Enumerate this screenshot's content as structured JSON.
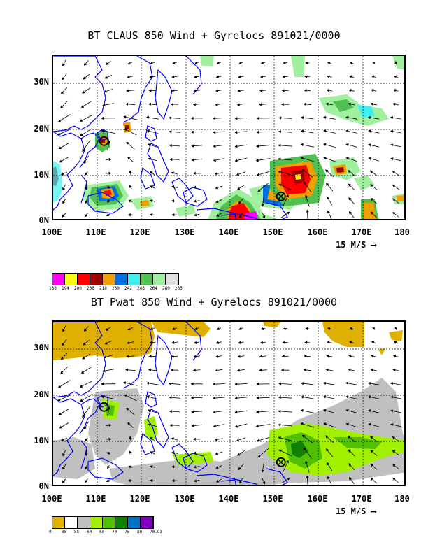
{
  "panels": [
    {
      "title": "BT CLAUS 850 Wind + Gyrelocs 891021/0000",
      "field": "brightness temperature",
      "legend": {
        "colors": [
          "#ff00ff",
          "#ffff00",
          "#ff0000",
          "#a00000",
          "#f0a000",
          "#0070e0",
          "#40f0f0",
          "#50c050",
          "#a0f0a0",
          "#e0e0e0"
        ],
        "labels": [
          "188",
          "194",
          "200",
          "206",
          "218",
          "230",
          "242",
          "248",
          "264",
          "280",
          "285"
        ]
      }
    },
    {
      "title": "BT Pwat 850 Wind + Gyrelocs 891021/0000",
      "field": "precipitable water",
      "legend": {
        "colors": [
          "#e0b000",
          "#ffffff",
          "#c0c0c0",
          "#a0f000",
          "#50c000",
          "#108000",
          "#0070c0",
          "#8000c0"
        ],
        "labels": [
          "0",
          "35",
          "55",
          "60",
          "65",
          "70",
          "75",
          "80",
          "70.93"
        ]
      }
    }
  ],
  "axes": {
    "x_ticks": [
      "100E",
      "110E",
      "120E",
      "130E",
      "140E",
      "150E",
      "160E",
      "170E",
      "180"
    ],
    "y_ticks": [
      "0N",
      "10N",
      "20N",
      "30N"
    ],
    "lon_range": [
      100,
      180
    ],
    "lat_range": [
      0,
      36
    ]
  },
  "vector_scale": {
    "label": "15 M/S",
    "arrow": "⟶"
  },
  "gyre_markers": [
    {
      "lon": 111.5,
      "lat": 17.5,
      "symbol": "circle"
    },
    {
      "lon": 151.5,
      "lat": 5.5,
      "symbol": "circle-cross"
    }
  ],
  "colors": {
    "coast": "#0000ff",
    "grid": "#000000",
    "vector": "#000000"
  }
}
